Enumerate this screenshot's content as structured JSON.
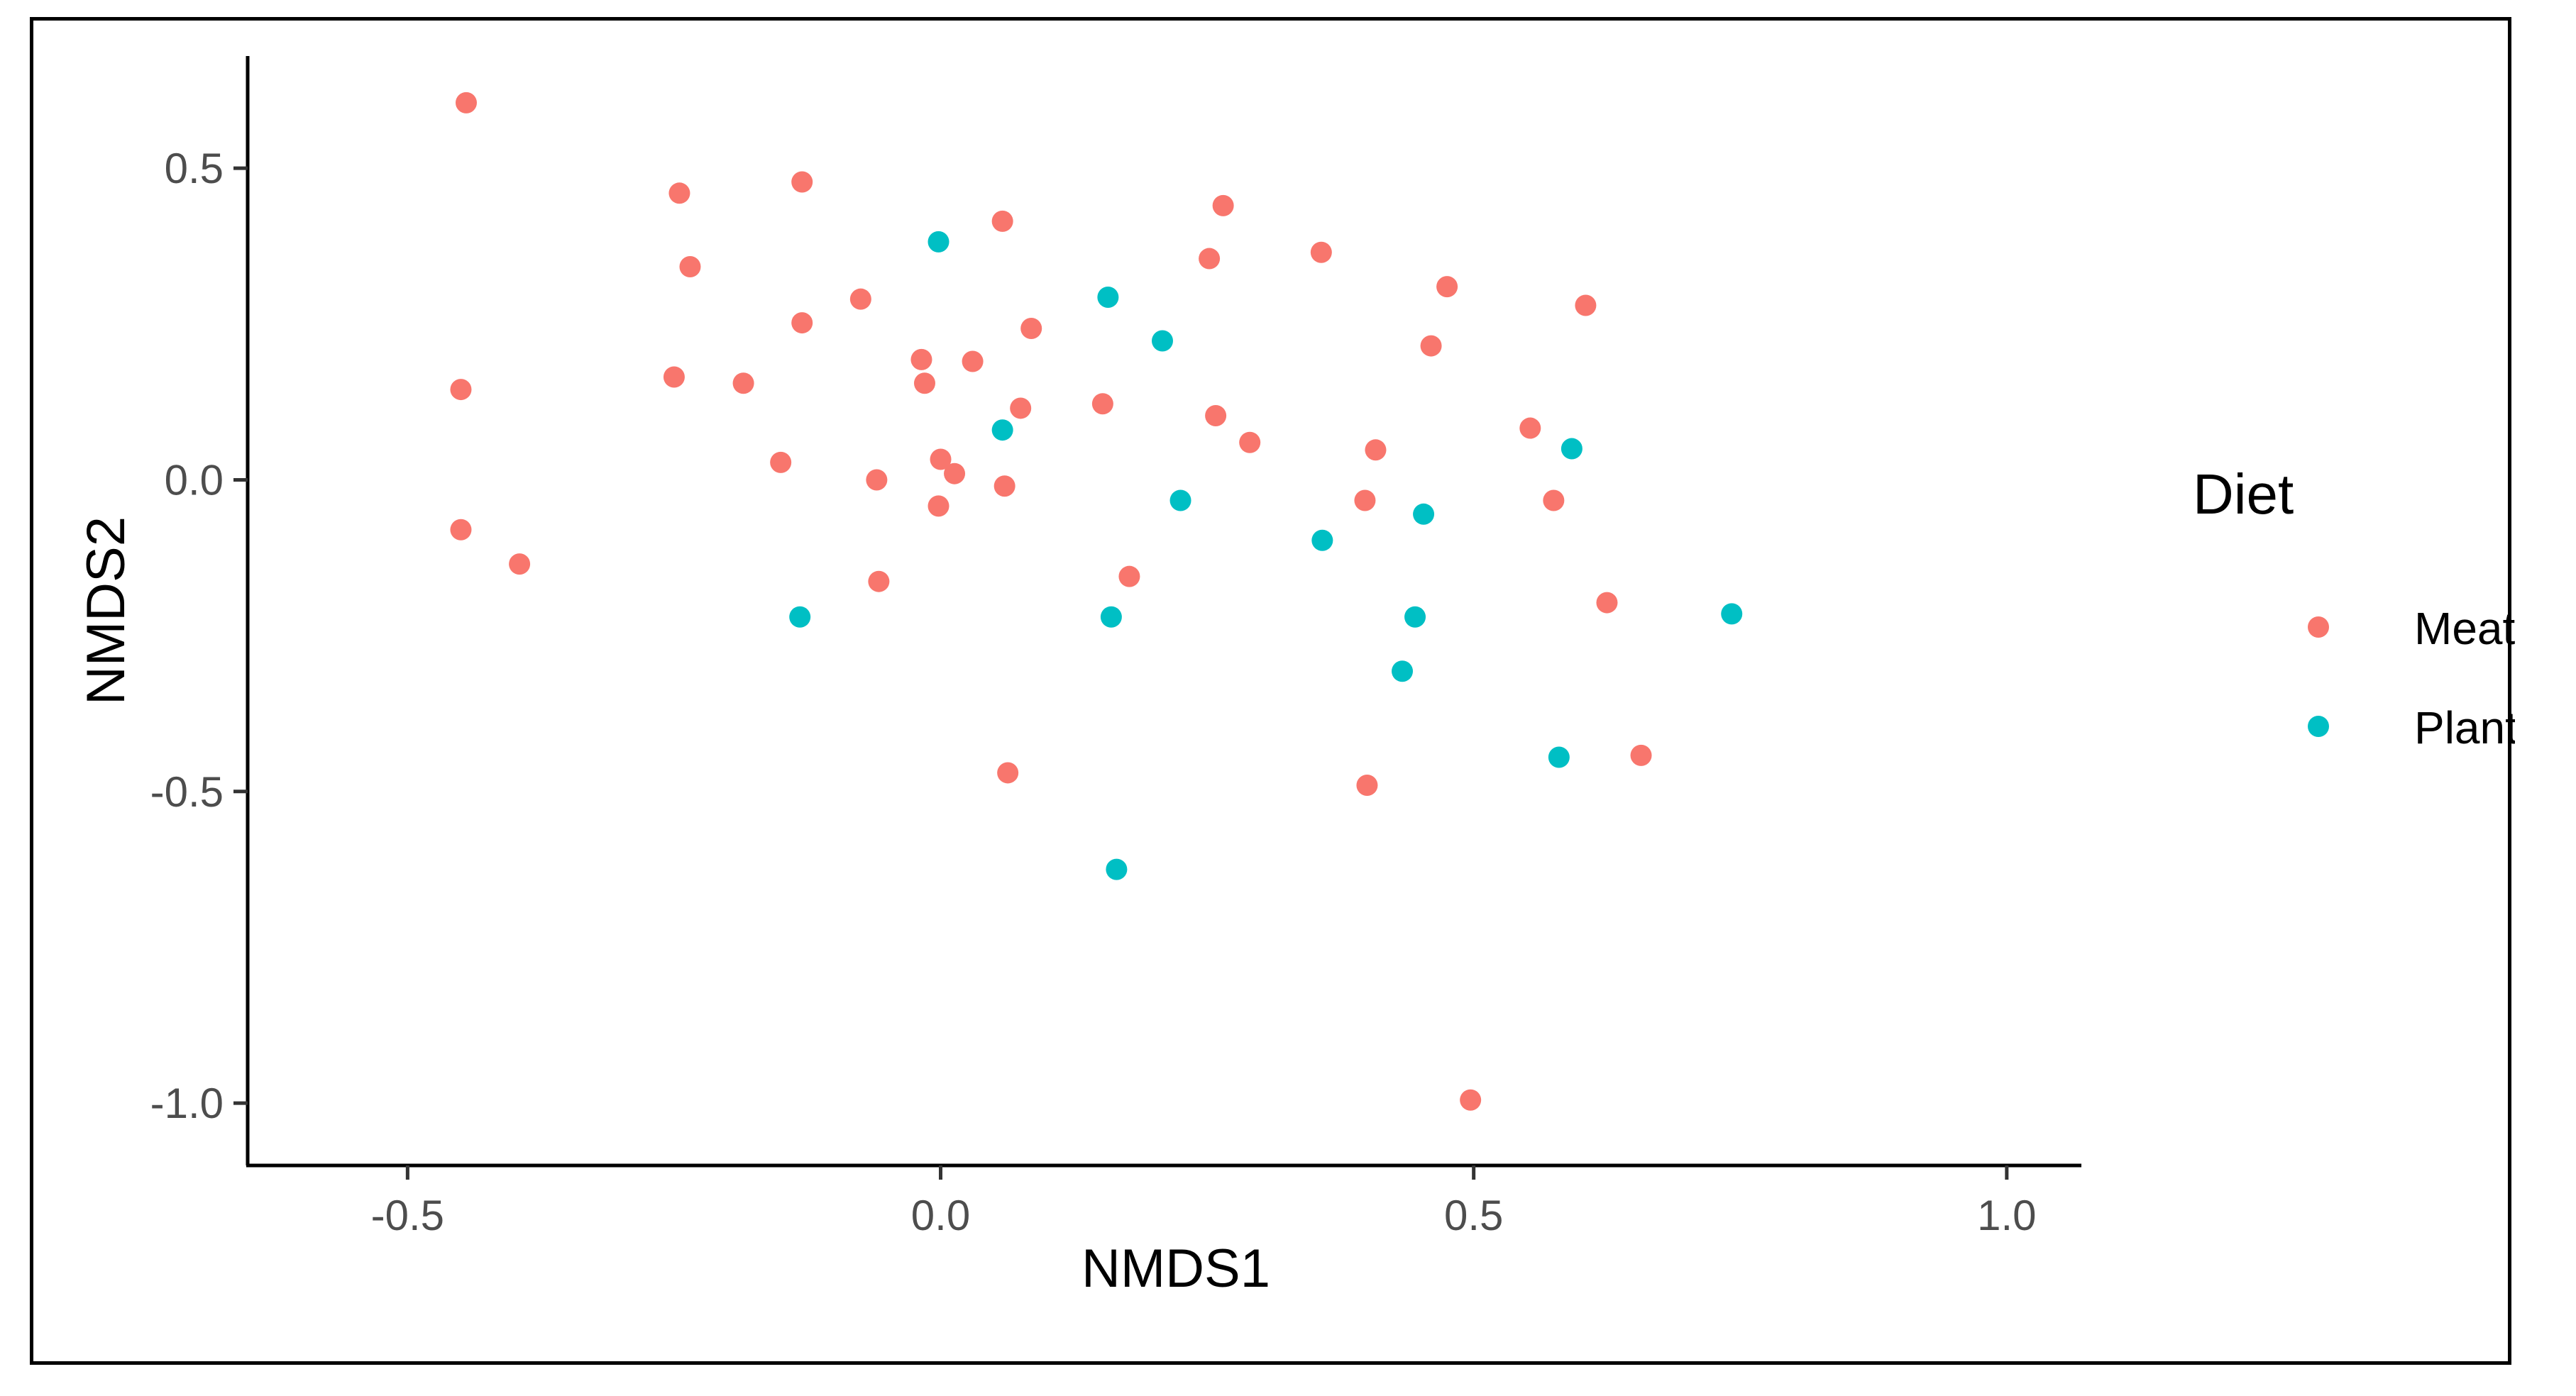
{
  "chart_data": {
    "type": "scatter",
    "title": "",
    "xlabel": "NMDS1",
    "ylabel": "NMDS2",
    "xlim": [
      -0.65,
      1.07
    ],
    "ylim": [
      -1.1,
      0.68
    ],
    "xticks": [
      -0.5,
      0.0,
      0.5,
      1.0
    ],
    "xtick_labels": [
      "-0.5",
      "0.0",
      "0.5",
      "1.0"
    ],
    "yticks": [
      0.5,
      0.0,
      -0.5,
      -1.0
    ],
    "ytick_labels": [
      "0.5",
      "0.0",
      "-0.5",
      "-1.0"
    ],
    "grid": false,
    "legend": {
      "title": "Diet",
      "position": "right"
    },
    "series": [
      {
        "name": "Meat",
        "color": "#F8766D",
        "points": [
          [
            -0.445,
            0.605
          ],
          [
            -0.45,
            0.145
          ],
          [
            -0.45,
            -0.08
          ],
          [
            -0.395,
            -0.135
          ],
          [
            -0.245,
            0.46
          ],
          [
            -0.235,
            0.342
          ],
          [
            -0.25,
            0.165
          ],
          [
            -0.185,
            0.155
          ],
          [
            -0.15,
            0.028
          ],
          [
            -0.13,
            0.478
          ],
          [
            -0.13,
            0.252
          ],
          [
            -0.075,
            0.29
          ],
          [
            -0.06,
            0.0
          ],
          [
            -0.058,
            -0.163
          ],
          [
            -0.018,
            0.193
          ],
          [
            -0.015,
            0.155
          ],
          [
            0.0,
            0.033
          ],
          [
            -0.002,
            -0.042
          ],
          [
            0.013,
            0.01
          ],
          [
            0.03,
            0.19
          ],
          [
            0.058,
            0.415
          ],
          [
            0.06,
            -0.01
          ],
          [
            0.063,
            -0.47
          ],
          [
            0.075,
            0.115
          ],
          [
            0.085,
            0.243
          ],
          [
            0.152,
            0.122
          ],
          [
            0.177,
            -0.155
          ],
          [
            0.252,
            0.355
          ],
          [
            0.258,
            0.103
          ],
          [
            0.265,
            0.44
          ],
          [
            0.29,
            0.06
          ],
          [
            0.357,
            0.365
          ],
          [
            0.398,
            -0.033
          ],
          [
            0.4,
            -0.49
          ],
          [
            0.408,
            0.048
          ],
          [
            0.46,
            0.215
          ],
          [
            0.475,
            0.31
          ],
          [
            0.497,
            -0.995
          ],
          [
            0.553,
            0.083
          ],
          [
            0.575,
            -0.033
          ],
          [
            0.605,
            0.28
          ],
          [
            0.625,
            -0.197
          ],
          [
            0.657,
            -0.442
          ]
        ]
      },
      {
        "name": "Plant",
        "color": "#00BFC4",
        "points": [
          [
            -0.002,
            0.382
          ],
          [
            -0.132,
            -0.22
          ],
          [
            0.058,
            0.08
          ],
          [
            0.157,
            0.293
          ],
          [
            0.16,
            -0.22
          ],
          [
            0.165,
            -0.625
          ],
          [
            0.208,
            0.223
          ],
          [
            0.225,
            -0.033
          ],
          [
            0.358,
            -0.097
          ],
          [
            0.433,
            -0.307
          ],
          [
            0.445,
            -0.22
          ],
          [
            0.453,
            -0.055
          ],
          [
            0.58,
            -0.445
          ],
          [
            0.592,
            0.05
          ],
          [
            0.742,
            -0.215
          ]
        ]
      }
    ]
  }
}
